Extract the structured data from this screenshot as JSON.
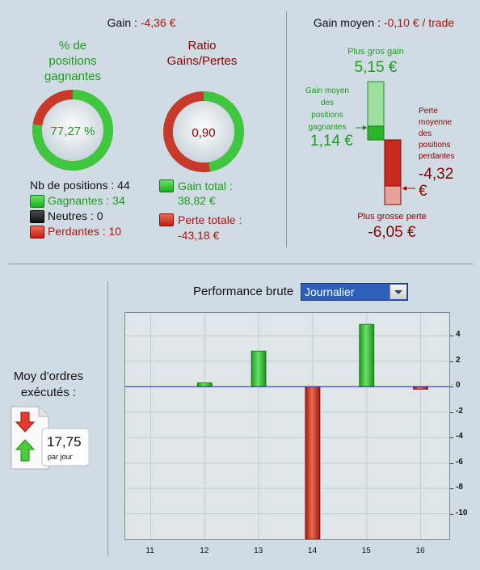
{
  "top_left": {
    "gain_label": "Gain : ",
    "gain_value": "-4,36 €",
    "pct_title_lines": [
      "% de",
      "positions",
      "gagnantes"
    ],
    "pct_value": "77,27 %",
    "pct_fraction": 0.7727,
    "ratio_title_lines": [
      "Ratio",
      "Gains/Pertes"
    ],
    "ratio_value": "0,90",
    "ratio_gain_fraction": 0.473,
    "nb_positions_label": "Nb de positions : 44",
    "gagnantes": "Gagnantes : 34",
    "neutres": "Neutres : 0",
    "perdantes": "Perdantes : 10",
    "gain_total_label": "Gain total :",
    "gain_total_value": "38,82 €",
    "perte_totale_label": "Perte totale :",
    "perte_totale_value": "-43,18 €"
  },
  "top_right": {
    "gain_moyen_label": "Gain moyen : ",
    "gain_moyen_value": "-0,10 € / trade",
    "plus_gros_gain_label": "Plus gros gain",
    "plus_gros_gain_value": "5,15 €",
    "gain_moyen_gagnantes_lines": [
      "Gain moyen",
      "des",
      "positions",
      "gagnantes"
    ],
    "gain_moyen_gagnantes_value": "1,14 €",
    "perte_moyenne_lines": [
      "Perte",
      "moyenne",
      "des",
      "positions",
      "perdantes"
    ],
    "perte_moyenne_value_lines": [
      "-4,32",
      "€"
    ],
    "plus_grosse_perte_label": "Plus grosse perte",
    "plus_grosse_perte_value": "-6,05 €"
  },
  "orders": {
    "title_lines": [
      "Moy d'ordres",
      "exécutés :"
    ],
    "value": "17,75",
    "unit": "par jour"
  },
  "performance": {
    "label": "Performance brute",
    "select_value": "Journalier"
  },
  "colors": {
    "green": "#1f9a1f",
    "red": "#b01414",
    "background": "#cfdce4"
  },
  "chart_data": {
    "type": "bar",
    "categories": [
      "11",
      "12",
      "13",
      "14",
      "15",
      "16"
    ],
    "values": [
      0,
      0.3,
      2.8,
      -12,
      4.9,
      -0.2
    ],
    "y_ticks": [
      "4",
      "2",
      "0",
      "-2",
      "-4",
      "-6",
      "-8",
      "-10"
    ],
    "ylim": [
      -12,
      5.8
    ],
    "grid": true,
    "y_axis_side": "right"
  }
}
